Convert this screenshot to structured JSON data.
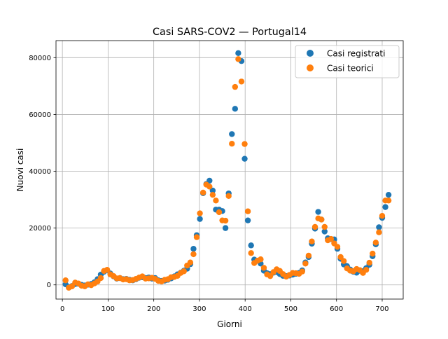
{
  "chart_data": {
    "type": "scatter",
    "title": "Casi SARS-COV2 — Portugal14",
    "xlabel": "Giorni",
    "ylabel": "Nuovi casi",
    "xlim": [
      -14,
      746
    ],
    "ylim": [
      -5000,
      86000
    ],
    "xticks": [
      0,
      100,
      200,
      300,
      400,
      500,
      600,
      700
    ],
    "yticks": [
      0,
      20000,
      40000,
      60000,
      80000
    ],
    "grid": true,
    "legend_position": "top-right",
    "series": [
      {
        "name": "Casi registrati",
        "color": "#1f77b4",
        "points": [
          [
            7,
            200
          ],
          [
            14,
            -800
          ],
          [
            21,
            -400
          ],
          [
            28,
            300
          ],
          [
            35,
            400
          ],
          [
            42,
            0
          ],
          [
            49,
            -200
          ],
          [
            56,
            100
          ],
          [
            63,
            300
          ],
          [
            70,
            900
          ],
          [
            77,
            2000
          ],
          [
            84,
            3600
          ],
          [
            91,
            4600
          ],
          [
            98,
            5200
          ],
          [
            105,
            4000
          ],
          [
            112,
            3000
          ],
          [
            119,
            2200
          ],
          [
            126,
            2400
          ],
          [
            133,
            2000
          ],
          [
            140,
            2100
          ],
          [
            147,
            1800
          ],
          [
            154,
            1600
          ],
          [
            161,
            2000
          ],
          [
            168,
            2500
          ],
          [
            175,
            2700
          ],
          [
            182,
            2400
          ],
          [
            189,
            2600
          ],
          [
            196,
            2200
          ],
          [
            203,
            2400
          ],
          [
            210,
            1600
          ],
          [
            217,
            1400
          ],
          [
            224,
            1500
          ],
          [
            231,
            1800
          ],
          [
            238,
            2300
          ],
          [
            245,
            3000
          ],
          [
            252,
            3700
          ],
          [
            259,
            4300
          ],
          [
            266,
            5000
          ],
          [
            273,
            5700
          ],
          [
            280,
            7300
          ],
          [
            287,
            12700
          ],
          [
            294,
            17500
          ],
          [
            301,
            23200
          ],
          [
            308,
            32300
          ],
          [
            315,
            35500
          ],
          [
            322,
            36700
          ],
          [
            329,
            33200
          ],
          [
            336,
            26500
          ],
          [
            343,
            26500
          ],
          [
            350,
            26000
          ],
          [
            357,
            20000
          ],
          [
            364,
            32200
          ],
          [
            371,
            53100
          ],
          [
            378,
            62000
          ],
          [
            385,
            81600
          ],
          [
            392,
            78800
          ],
          [
            399,
            44400
          ],
          [
            406,
            22700
          ],
          [
            413,
            13900
          ],
          [
            420,
            8900
          ],
          [
            427,
            8500
          ],
          [
            434,
            7500
          ],
          [
            441,
            5000
          ],
          [
            448,
            4100
          ],
          [
            455,
            3800
          ],
          [
            462,
            4300
          ],
          [
            469,
            4500
          ],
          [
            476,
            3800
          ],
          [
            483,
            3200
          ],
          [
            490,
            3100
          ],
          [
            497,
            3300
          ],
          [
            504,
            3600
          ],
          [
            511,
            3900
          ],
          [
            518,
            4200
          ],
          [
            525,
            5100
          ],
          [
            532,
            7900
          ],
          [
            539,
            9800
          ],
          [
            546,
            14500
          ],
          [
            553,
            19800
          ],
          [
            560,
            25700
          ],
          [
            567,
            23000
          ],
          [
            574,
            18800
          ],
          [
            581,
            16400
          ],
          [
            588,
            16100
          ],
          [
            595,
            16000
          ],
          [
            602,
            12700
          ],
          [
            609,
            9200
          ],
          [
            616,
            7200
          ],
          [
            623,
            6600
          ],
          [
            630,
            5400
          ],
          [
            637,
            4600
          ],
          [
            644,
            4300
          ],
          [
            651,
            5000
          ],
          [
            658,
            4800
          ],
          [
            665,
            5900
          ],
          [
            672,
            7100
          ],
          [
            679,
            10100
          ],
          [
            686,
            14300
          ],
          [
            693,
            20300
          ],
          [
            700,
            23600
          ],
          [
            707,
            27400
          ],
          [
            714,
            31700
          ]
        ]
      },
      {
        "name": "Casi teorici",
        "color": "#ff7f0e",
        "points": [
          [
            7,
            1600
          ],
          [
            14,
            -1000
          ],
          [
            21,
            -500
          ],
          [
            28,
            800
          ],
          [
            35,
            500
          ],
          [
            42,
            -300
          ],
          [
            49,
            -500
          ],
          [
            56,
            200
          ],
          [
            63,
            -100
          ],
          [
            70,
            500
          ],
          [
            77,
            1200
          ],
          [
            84,
            2400
          ],
          [
            91,
            4900
          ],
          [
            98,
            5300
          ],
          [
            105,
            3700
          ],
          [
            112,
            3100
          ],
          [
            119,
            2300
          ],
          [
            126,
            2400
          ],
          [
            133,
            1900
          ],
          [
            140,
            2000
          ],
          [
            147,
            1600
          ],
          [
            154,
            1700
          ],
          [
            161,
            2100
          ],
          [
            168,
            2600
          ],
          [
            175,
            3000
          ],
          [
            182,
            2200
          ],
          [
            189,
            2300
          ],
          [
            196,
            2500
          ],
          [
            203,
            2100
          ],
          [
            210,
            1400
          ],
          [
            217,
            1200
          ],
          [
            224,
            1800
          ],
          [
            231,
            2000
          ],
          [
            238,
            2700
          ],
          [
            245,
            2800
          ],
          [
            252,
            3200
          ],
          [
            259,
            4200
          ],
          [
            266,
            4800
          ],
          [
            273,
            6800
          ],
          [
            280,
            7900
          ],
          [
            287,
            10800
          ],
          [
            294,
            16800
          ],
          [
            301,
            25200
          ],
          [
            308,
            32500
          ],
          [
            315,
            35300
          ],
          [
            322,
            34600
          ],
          [
            329,
            31700
          ],
          [
            336,
            29700
          ],
          [
            343,
            25600
          ],
          [
            350,
            22700
          ],
          [
            357,
            22600
          ],
          [
            364,
            31300
          ],
          [
            371,
            49700
          ],
          [
            378,
            69700
          ],
          [
            385,
            79500
          ],
          [
            392,
            71600
          ],
          [
            399,
            49600
          ],
          [
            406,
            25900
          ],
          [
            413,
            11200
          ],
          [
            420,
            7700
          ],
          [
            427,
            8500
          ],
          [
            434,
            9000
          ],
          [
            441,
            6000
          ],
          [
            448,
            3700
          ],
          [
            455,
            3100
          ],
          [
            462,
            4500
          ],
          [
            469,
            5500
          ],
          [
            476,
            4900
          ],
          [
            483,
            3800
          ],
          [
            490,
            2900
          ],
          [
            497,
            3500
          ],
          [
            504,
            4200
          ],
          [
            511,
            4100
          ],
          [
            518,
            3900
          ],
          [
            525,
            4700
          ],
          [
            532,
            7500
          ],
          [
            539,
            10300
          ],
          [
            546,
            15300
          ],
          [
            553,
            20400
          ],
          [
            560,
            23400
          ],
          [
            567,
            23000
          ],
          [
            574,
            20400
          ],
          [
            581,
            15700
          ],
          [
            588,
            16200
          ],
          [
            595,
            14600
          ],
          [
            602,
            13400
          ],
          [
            609,
            9800
          ],
          [
            616,
            8400
          ],
          [
            623,
            5800
          ],
          [
            630,
            5000
          ],
          [
            637,
            4800
          ],
          [
            644,
            5600
          ],
          [
            651,
            5200
          ],
          [
            658,
            4200
          ],
          [
            665,
            5300
          ],
          [
            672,
            7800
          ],
          [
            679,
            11000
          ],
          [
            686,
            14900
          ],
          [
            693,
            18500
          ],
          [
            700,
            24300
          ],
          [
            707,
            29700
          ],
          [
            714,
            29700
          ]
        ]
      }
    ]
  }
}
